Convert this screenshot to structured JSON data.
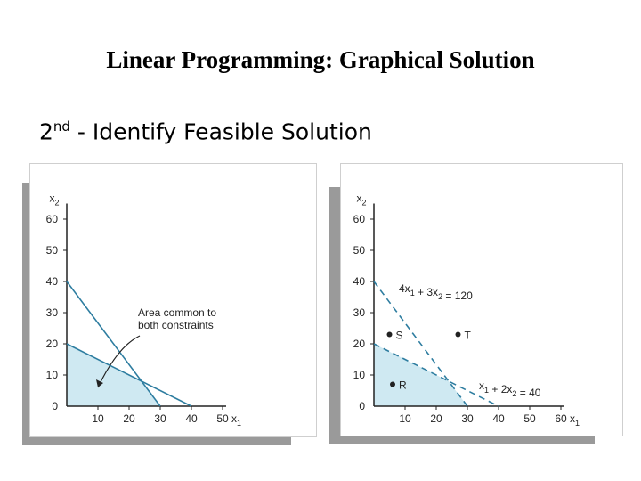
{
  "slide": {
    "title": "Linear Programming: Graphical Solution",
    "subtitle_ordinal": "2",
    "subtitle_sup": "nd",
    "subtitle_rest": " - Identify Feasible Solution"
  },
  "colors": {
    "feasible_fill": "#cfe9f2",
    "constraint_line": "#2e7da0",
    "axis": "#222222"
  },
  "chart_data": [
    {
      "type": "area",
      "x_ticks": [
        10,
        20,
        30,
        40,
        50
      ],
      "y_ticks": [
        0,
        10,
        20,
        30,
        40,
        50,
        60
      ],
      "xlabel": "x1",
      "ylabel": "x2",
      "xlim": [
        0,
        50
      ],
      "ylim": [
        0,
        65
      ],
      "constraints": [
        {
          "points": [
            [
              0,
              40
            ],
            [
              30,
              0
            ]
          ],
          "style": "solid"
        },
        {
          "points": [
            [
              0,
              20
            ],
            [
              40,
              0
            ]
          ],
          "style": "solid"
        }
      ],
      "feasible_region": [
        [
          0,
          0
        ],
        [
          0,
          20
        ],
        [
          24,
          8
        ],
        [
          30,
          0
        ]
      ],
      "annotation": {
        "lines": [
          "Area common to",
          "both constraints"
        ],
        "arrow_to": [
          10,
          6
        ]
      }
    },
    {
      "type": "area",
      "x_ticks": [
        10,
        20,
        30,
        40,
        50,
        60
      ],
      "y_ticks": [
        0,
        10,
        20,
        30,
        40,
        50,
        60
      ],
      "xlabel": "x1",
      "ylabel": "x2",
      "xlim": [
        0,
        60
      ],
      "ylim": [
        0,
        65
      ],
      "constraints": [
        {
          "label": "4x1 + 3x2 = 120",
          "points": [
            [
              0,
              40
            ],
            [
              30,
              0
            ]
          ],
          "style": "dashed"
        },
        {
          "label": "x1 + 2x2 = 40",
          "points": [
            [
              0,
              20
            ],
            [
              40,
              0
            ]
          ],
          "style": "dashed"
        }
      ],
      "feasible_region": [
        [
          0,
          0
        ],
        [
          0,
          20
        ],
        [
          24,
          8
        ],
        [
          30,
          0
        ]
      ],
      "points": [
        {
          "name": "S",
          "x": 5,
          "y": 23
        },
        {
          "name": "T",
          "x": 27,
          "y": 23
        },
        {
          "name": "R",
          "x": 6,
          "y": 7
        }
      ]
    }
  ]
}
